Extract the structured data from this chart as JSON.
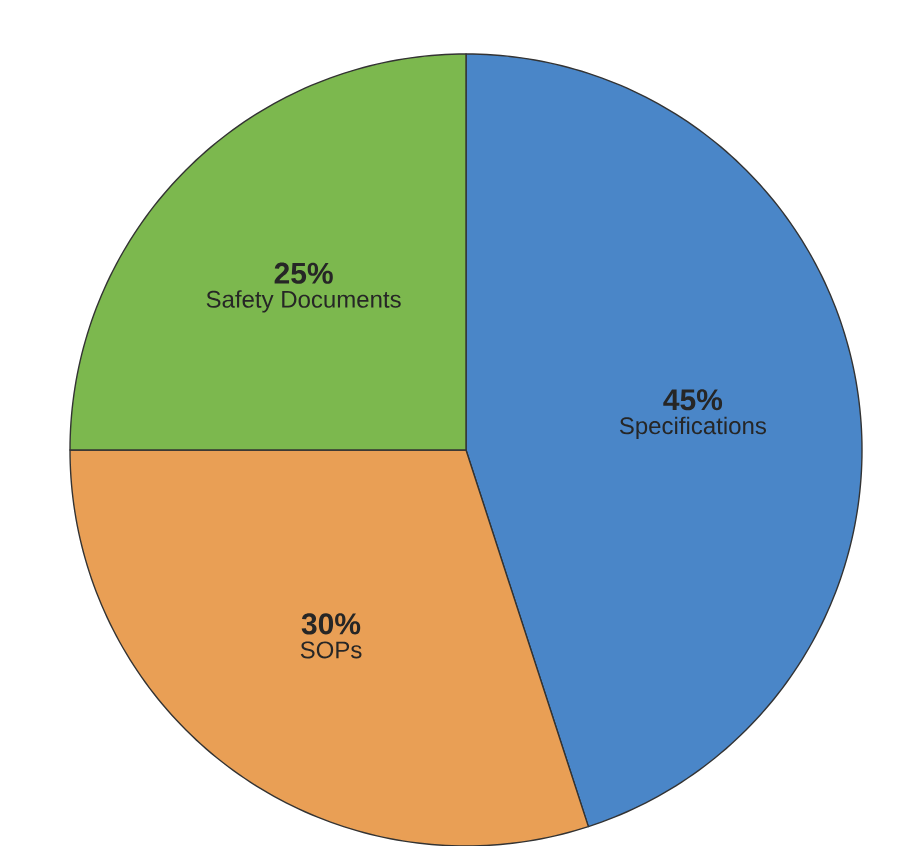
{
  "chart_data": {
    "type": "pie",
    "categories": [
      "Specifications",
      "SOPs",
      "Safety Documents"
    ],
    "values": [
      45,
      30,
      25
    ],
    "value_labels": [
      "45%",
      "30%",
      "25%"
    ],
    "colors": [
      "#4a86c8",
      "#e99f55",
      "#7cb84e"
    ]
  }
}
